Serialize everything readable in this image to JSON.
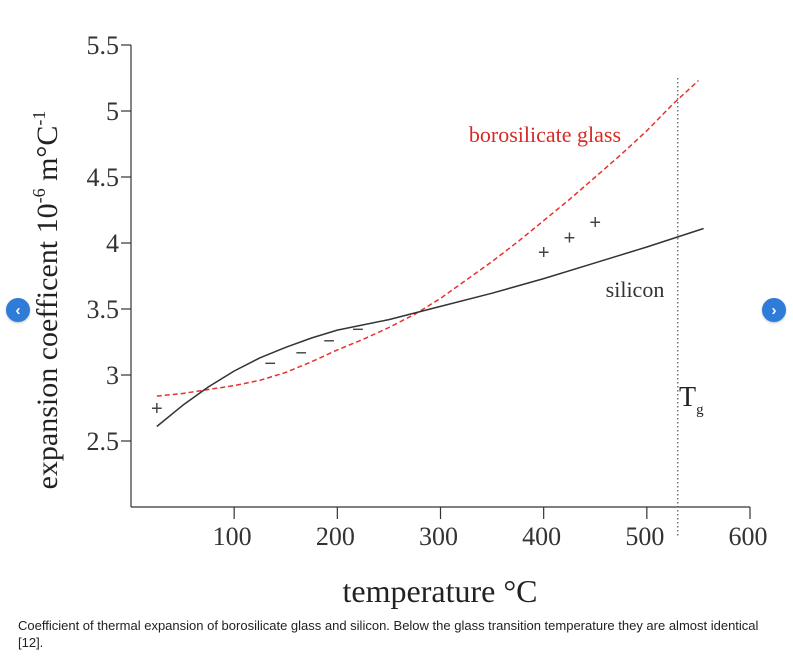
{
  "chart_data": {
    "type": "line",
    "xlabel": "temperature °C",
    "ylabel_main": "expansion coefficent 10",
    "ylabel_exp": "-6",
    "ylabel_unit": " m°C",
    "ylabel_unit_exp": "-1",
    "xlim": [
      0,
      600
    ],
    "ylim": [
      2.0,
      5.5
    ],
    "xticks": [
      100,
      200,
      300,
      400,
      500,
      600
    ],
    "yticks": [
      2.5,
      3,
      3.5,
      4,
      4.5,
      5,
      5.5
    ],
    "ytick_labels": [
      "2.5",
      "3",
      "3.5",
      "4",
      "4.5",
      "5",
      "5.5"
    ],
    "grid": false,
    "series": [
      {
        "name": "borosilicate glass",
        "color": "#e8312f",
        "style": "dashed",
        "x": [
          25,
          50,
          75,
          100,
          125,
          150,
          175,
          200,
          225,
          250,
          275,
          300,
          325,
          350,
          375,
          400,
          425,
          450,
          475,
          500,
          525,
          550
        ],
        "y": [
          2.84,
          2.86,
          2.89,
          2.92,
          2.96,
          3.02,
          3.1,
          3.19,
          3.27,
          3.36,
          3.46,
          3.58,
          3.72,
          3.86,
          4.01,
          4.17,
          4.33,
          4.5,
          4.67,
          4.85,
          5.05,
          5.23
        ]
      },
      {
        "name": "silicon",
        "color": "#333333",
        "style": "solid",
        "x": [
          25,
          50,
          75,
          100,
          125,
          150,
          175,
          200,
          250,
          300,
          350,
          400,
          450,
          500,
          555
        ],
        "y": [
          2.61,
          2.77,
          2.91,
          3.03,
          3.13,
          3.21,
          3.28,
          3.34,
          3.42,
          3.52,
          3.62,
          3.73,
          3.85,
          3.97,
          4.11
        ]
      }
    ],
    "markers": [
      {
        "symbol": "+",
        "x": 25,
        "y": 2.75
      },
      {
        "symbol": "−",
        "x": 135,
        "y": 3.09
      },
      {
        "symbol": "−",
        "x": 165,
        "y": 3.17
      },
      {
        "symbol": "−",
        "x": 192,
        "y": 3.26
      },
      {
        "symbol": "−",
        "x": 220,
        "y": 3.35
      },
      {
        "symbol": "+",
        "x": 400,
        "y": 3.93
      },
      {
        "symbol": "+",
        "x": 425,
        "y": 4.04
      },
      {
        "symbol": "+",
        "x": 450,
        "y": 4.16
      }
    ],
    "tg_x": 530,
    "tg_label_main": "T",
    "tg_label_sub": "g",
    "annotation_glass": "borosilicate glass",
    "annotation_silicon": "silicon"
  },
  "caption": "Coefficient of thermal expansion of borosilicate glass and silicon. Below the glass transition temperature they are almost identical [12].",
  "nav": {
    "prev_icon": "‹",
    "next_icon": "›"
  }
}
